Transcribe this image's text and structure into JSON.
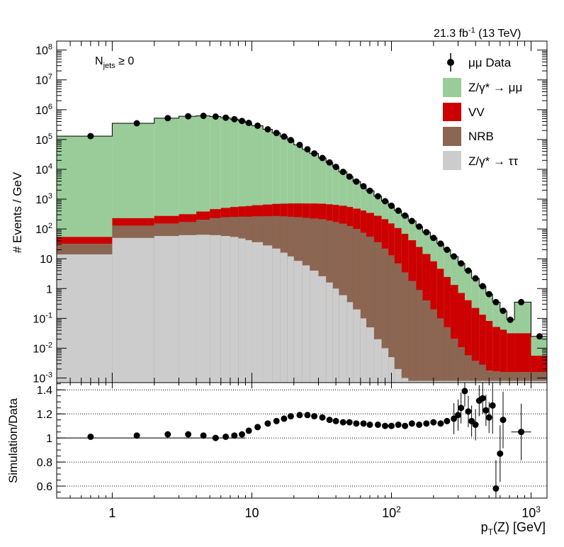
{
  "header": {
    "lumi": "21.3 fb",
    "lumi_exp": "-1",
    "energy": " (13 TeV)"
  },
  "annotation": {
    "main": "N",
    "sub": "jets",
    "rest": " ≥ 0"
  },
  "legend": {
    "data": "μμ Data",
    "dy_mm": "Z/γ* → μμ",
    "vv": "VV",
    "nrb": "NRB",
    "dy_tt": "Z/γ* → ττ"
  },
  "colors": {
    "dy_mm": "#99cc99",
    "vv": "#cc0000",
    "nrb": "#8b6653",
    "dy_tt": "#cccccc",
    "data": "#000000"
  },
  "chart_data": [
    {
      "type": "area",
      "panel": "main",
      "ylabel": "# Events / GeV",
      "xscale": "log",
      "yscale": "log",
      "xlim": [
        0.4,
        1300
      ],
      "ylim": [
        0.0007,
        200000000
      ],
      "y_ticks": [
        "10^-3",
        "10^-2",
        "10^-1",
        "1",
        "10",
        "10^2",
        "10^3",
        "10^4",
        "10^5",
        "10^6",
        "10^7",
        "10^8"
      ],
      "legend_position": "top-right",
      "series": [
        {
          "name": "μμ Data",
          "type": "scatter",
          "x": [
            0.7,
            1.5,
            2.5,
            3.5,
            4.5,
            5.5,
            6.5,
            7.5,
            8.5,
            9.5,
            11,
            13,
            15,
            17,
            19,
            22,
            25,
            28,
            32,
            36,
            40,
            45,
            50,
            56,
            63,
            70,
            80,
            90,
            100,
            112,
            125,
            140,
            158,
            178,
            200,
            225,
            250,
            280,
            315,
            355,
            400,
            450,
            500,
            560,
            630,
            710,
            850,
            1150
          ],
          "y": [
            130000,
            350000,
            520000,
            600000,
            620000,
            590000,
            540000,
            480000,
            420000,
            360000,
            290000,
            220000,
            165000,
            125000,
            95000,
            66000,
            47000,
            34000,
            24000,
            17000,
            12000,
            8200,
            5700,
            3900,
            2700,
            1900,
            1250,
            850,
            600,
            410,
            280,
            185,
            120,
            78,
            50,
            32,
            20,
            12,
            7,
            4,
            2.2,
            1.2,
            0.65,
            0.35,
            0.18,
            0.09,
            0.35,
            0.025
          ]
        },
        {
          "name": "Z/γ* → μμ",
          "edges": [
            0.4,
            1,
            2,
            3,
            4,
            5,
            6,
            7,
            8,
            9,
            10,
            12,
            14,
            16,
            18,
            20,
            23,
            26,
            30,
            34,
            38,
            42,
            48,
            53,
            60,
            66,
            75,
            85,
            95,
            105,
            118,
            132,
            150,
            167,
            190,
            212,
            237,
            265,
            300,
            335,
            375,
            425,
            475,
            530,
            600,
            670,
            760,
            1000,
            1300
          ],
          "values": [
            130000,
            350000,
            520000,
            600000,
            620000,
            590000,
            540000,
            480000,
            420000,
            360000,
            290000,
            220000,
            165000,
            125000,
            95000,
            66000,
            47000,
            34000,
            24000,
            17000,
            12000,
            8200,
            5700,
            3900,
            2700,
            1900,
            1250,
            850,
            600,
            410,
            280,
            185,
            120,
            78,
            50,
            32,
            20,
            12,
            7,
            4,
            2.2,
            1.2,
            0.65,
            0.35,
            0.18,
            0.09,
            0.35,
            0.025
          ]
        },
        {
          "name": "VV",
          "edges": [
            0.4,
            1,
            2,
            3,
            4,
            5,
            6,
            7,
            8,
            9,
            10,
            12,
            14,
            16,
            18,
            20,
            23,
            26,
            30,
            34,
            38,
            42,
            48,
            53,
            60,
            66,
            75,
            85,
            95,
            105,
            118,
            132,
            150,
            167,
            190,
            212,
            237,
            265,
            300,
            335,
            375,
            425,
            475,
            530,
            600,
            670,
            760,
            1000,
            1300
          ],
          "values": [
            22,
            100,
            120,
            140,
            180,
            230,
            260,
            290,
            310,
            330,
            360,
            390,
            420,
            440,
            460,
            470,
            480,
            490,
            490,
            480,
            470,
            450,
            420,
            380,
            340,
            290,
            240,
            190,
            140,
            100,
            65,
            40,
            24,
            14,
            8,
            4.5,
            2.4,
            1.3,
            0.7,
            0.4,
            0.22,
            0.13,
            0.08,
            0.05,
            0.04,
            0.03,
            0.03,
            0.004
          ]
        },
        {
          "name": "NRB",
          "edges": [
            0.4,
            1,
            2,
            3,
            4,
            5,
            6,
            7,
            8,
            9,
            10,
            12,
            14,
            16,
            18,
            20,
            23,
            26,
            30,
            34,
            38,
            42,
            48,
            53,
            60,
            66,
            75,
            85,
            95,
            105,
            118,
            132,
            150,
            167,
            190,
            212,
            237,
            265,
            300,
            335,
            375,
            425,
            475,
            530,
            600,
            670,
            760,
            1000,
            1300
          ],
          "values": [
            18,
            80,
            95,
            110,
            140,
            170,
            190,
            200,
            210,
            215,
            230,
            240,
            250,
            250,
            245,
            240,
            230,
            220,
            210,
            190,
            170,
            150,
            125,
            100,
            75,
            55,
            36,
            22,
            13,
            7,
            3.5,
            1.8,
            0.9,
            0.4,
            0.2,
            0.1,
            0.05,
            0.02,
            0.01,
            0.005,
            0.003,
            0.002,
            0.001,
            0.0009,
            0.0008,
            0.0008,
            0.0008,
            0.0008
          ]
        },
        {
          "name": "Z/γ* → ττ",
          "edges": [
            0.4,
            1,
            2,
            3,
            4,
            5,
            6,
            7,
            8,
            9,
            10,
            12,
            14,
            16,
            18,
            20,
            23,
            26,
            30,
            34,
            38,
            42,
            48,
            53,
            60,
            66,
            75,
            85,
            95,
            105,
            118,
            132,
            150,
            167,
            190,
            212,
            237,
            265,
            300,
            335,
            375,
            425,
            475,
            530,
            600,
            670,
            760,
            1000,
            1300
          ],
          "values": [
            14,
            50,
            58,
            62,
            64,
            62,
            58,
            54,
            48,
            42,
            36,
            28,
            22,
            16,
            12,
            8.5,
            6,
            4,
            2.6,
            1.6,
            1,
            0.6,
            0.35,
            0.2,
            0.1,
            0.05,
            0.02,
            0.01,
            0.005,
            0.002,
            0.001,
            0.0008,
            0.0008,
            0.0008,
            0.0008,
            0.0008,
            0.0008,
            0.0008,
            0.0008,
            0.0008,
            0.0008,
            0.0008,
            0.0008,
            0.0008,
            0.0008,
            0.0008,
            0.0008,
            0.0008
          ]
        }
      ]
    },
    {
      "type": "scatter",
      "panel": "ratio",
      "xlabel": "p_T(Z) [GeV]",
      "ylabel": "Simulation/Data",
      "xscale": "log",
      "xlim": [
        0.4,
        1300
      ],
      "ylim": [
        0.5,
        1.46
      ],
      "y_ticks": [
        "0.6",
        "0.8",
        "1",
        "1.2",
        "1.4"
      ],
      "x_ticks": [
        "1",
        "10",
        "10^2",
        "10^3"
      ],
      "grid": true,
      "series": [
        {
          "name": "",
          "x": [
            0.7,
            1.5,
            2.5,
            3.5,
            4.5,
            5.5,
            6.5,
            7.5,
            8.5,
            9.5,
            11,
            13,
            15,
            17,
            19,
            22,
            25,
            28,
            32,
            36,
            40,
            45,
            50,
            56,
            63,
            70,
            80,
            90,
            100,
            112,
            125,
            140,
            158,
            178,
            200,
            225,
            250,
            280,
            300,
            315,
            335,
            355,
            375,
            400,
            425,
            450,
            475,
            500,
            530,
            560,
            600,
            630,
            850
          ],
          "y": [
            1.01,
            1.02,
            1.03,
            1.03,
            1.02,
            1.0,
            1.01,
            1.02,
            1.03,
            1.06,
            1.09,
            1.12,
            1.14,
            1.16,
            1.18,
            1.19,
            1.19,
            1.18,
            1.17,
            1.15,
            1.14,
            1.13,
            1.13,
            1.12,
            1.12,
            1.11,
            1.11,
            1.1,
            1.1,
            1.11,
            1.1,
            1.12,
            1.11,
            1.12,
            1.13,
            1.12,
            1.14,
            1.16,
            1.19,
            1.25,
            1.39,
            1.22,
            1.14,
            1.11,
            1.31,
            1.33,
            1.23,
            1.17,
            1.27,
            0.58,
            0.87,
            1.15,
            1.05
          ]
        }
      ]
    }
  ]
}
